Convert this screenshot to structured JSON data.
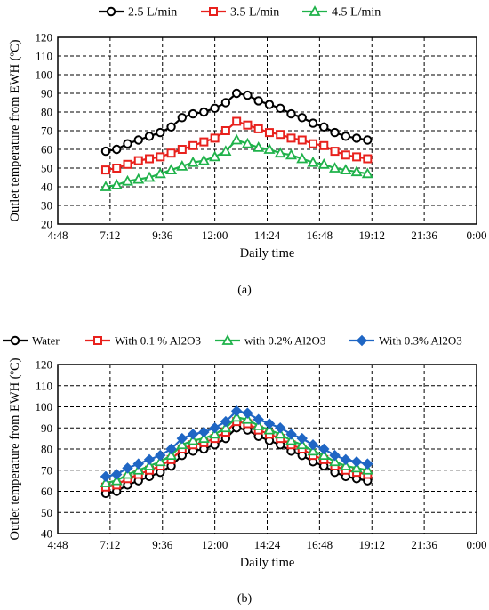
{
  "chart_data": [
    {
      "type": "line",
      "panel_label": "(a)",
      "xlabel": "Daily time",
      "ylabel": "Outlet temperature from EWH (ºC)",
      "ylim": [
        20,
        120
      ],
      "y_ticks": [
        20,
        30,
        40,
        50,
        60,
        70,
        80,
        90,
        100,
        110,
        120
      ],
      "xlim_hours": [
        4.8,
        24
      ],
      "x_tick_labels": [
        "4:48",
        "7:12",
        "9:36",
        "12:00",
        "14:24",
        "16:48",
        "19:12",
        "21:36",
        "0:00"
      ],
      "grid": true,
      "legend_position": "top",
      "x_hours": [
        7,
        7.5,
        8,
        8.5,
        9,
        9.5,
        10,
        10.5,
        11,
        11.5,
        12,
        12.5,
        13,
        13.5,
        14,
        14.5,
        15,
        15.5,
        16,
        16.5,
        17,
        17.5,
        18,
        18.5,
        19
      ],
      "series": [
        {
          "name": "2.5 L/min",
          "color": "#000000",
          "marker": "circle",
          "values": [
            59,
            60,
            63,
            65,
            67,
            69,
            72,
            77,
            79,
            80,
            82,
            85,
            90,
            89,
            86,
            84,
            82,
            79,
            77,
            74,
            72,
            69,
            67,
            66,
            65
          ]
        },
        {
          "name": "3.5 L/min",
          "color": "#e8211d",
          "marker": "square",
          "values": [
            49,
            50,
            52,
            54,
            55,
            56,
            58,
            60,
            62,
            64,
            66,
            70,
            75,
            73,
            71,
            69,
            68,
            66,
            65,
            63,
            62,
            59,
            57,
            56,
            55
          ]
        },
        {
          "name": "4.5 L/min",
          "color": "#1fb24a",
          "marker": "triangle",
          "values": [
            40,
            41,
            43,
            44,
            45,
            47,
            49,
            51,
            53,
            54,
            56,
            59,
            65,
            63,
            61,
            60,
            58,
            57,
            55,
            53,
            52,
            50,
            49,
            48,
            47
          ]
        }
      ]
    },
    {
      "type": "line",
      "panel_label": "(b)",
      "xlabel": "Daily time",
      "ylabel": "Outlet temperature from EWH (ºC)",
      "ylim": [
        40,
        120
      ],
      "y_ticks": [
        40,
        50,
        60,
        70,
        80,
        90,
        100,
        110,
        120
      ],
      "xlim_hours": [
        4.8,
        24
      ],
      "x_tick_labels": [
        "4:48",
        "7:12",
        "9:36",
        "12:00",
        "14:24",
        "16:48",
        "19:12",
        "21:36",
        "0:00"
      ],
      "grid": true,
      "legend_position": "top",
      "x_hours": [
        7,
        7.5,
        8,
        8.5,
        9,
        9.5,
        10,
        10.5,
        11,
        11.5,
        12,
        12.5,
        13,
        13.5,
        14,
        14.5,
        15,
        15.5,
        16,
        16.5,
        17,
        17.5,
        18,
        18.5,
        19
      ],
      "series": [
        {
          "name": "Water",
          "color": "#000000",
          "marker": "circle",
          "values": [
            59,
            60,
            63,
            65,
            67,
            69,
            72,
            77,
            79,
            80,
            82,
            85,
            90,
            89,
            86,
            84,
            82,
            79,
            77,
            74,
            72,
            69,
            67,
            66,
            65
          ]
        },
        {
          "name": "With 0.1 % Al2O3",
          "color": "#e8211d",
          "marker": "square",
          "values": [
            62,
            63,
            66,
            68,
            70,
            72,
            75,
            80,
            82,
            83,
            85,
            88,
            93,
            92,
            89,
            87,
            85,
            82,
            80,
            77,
            75,
            72,
            70,
            69,
            68
          ]
        },
        {
          "name": "with 0.2% Al2O3",
          "color": "#1fb24a",
          "marker": "triangle",
          "values": [
            64,
            65,
            68,
            70,
            72,
            74,
            77,
            82,
            84,
            85,
            87,
            90,
            95,
            94,
            91,
            89,
            87,
            84,
            82,
            79,
            77,
            74,
            72,
            71,
            70
          ]
        },
        {
          "name": "With 0.3% Al2O3",
          "color": "#1f66c4",
          "marker": "diamond",
          "values": [
            67,
            68,
            71,
            73,
            75,
            77,
            80,
            85,
            87,
            88,
            90,
            93,
            98,
            97,
            94,
            92,
            90,
            87,
            85,
            82,
            80,
            77,
            75,
            74,
            73
          ]
        }
      ]
    }
  ]
}
